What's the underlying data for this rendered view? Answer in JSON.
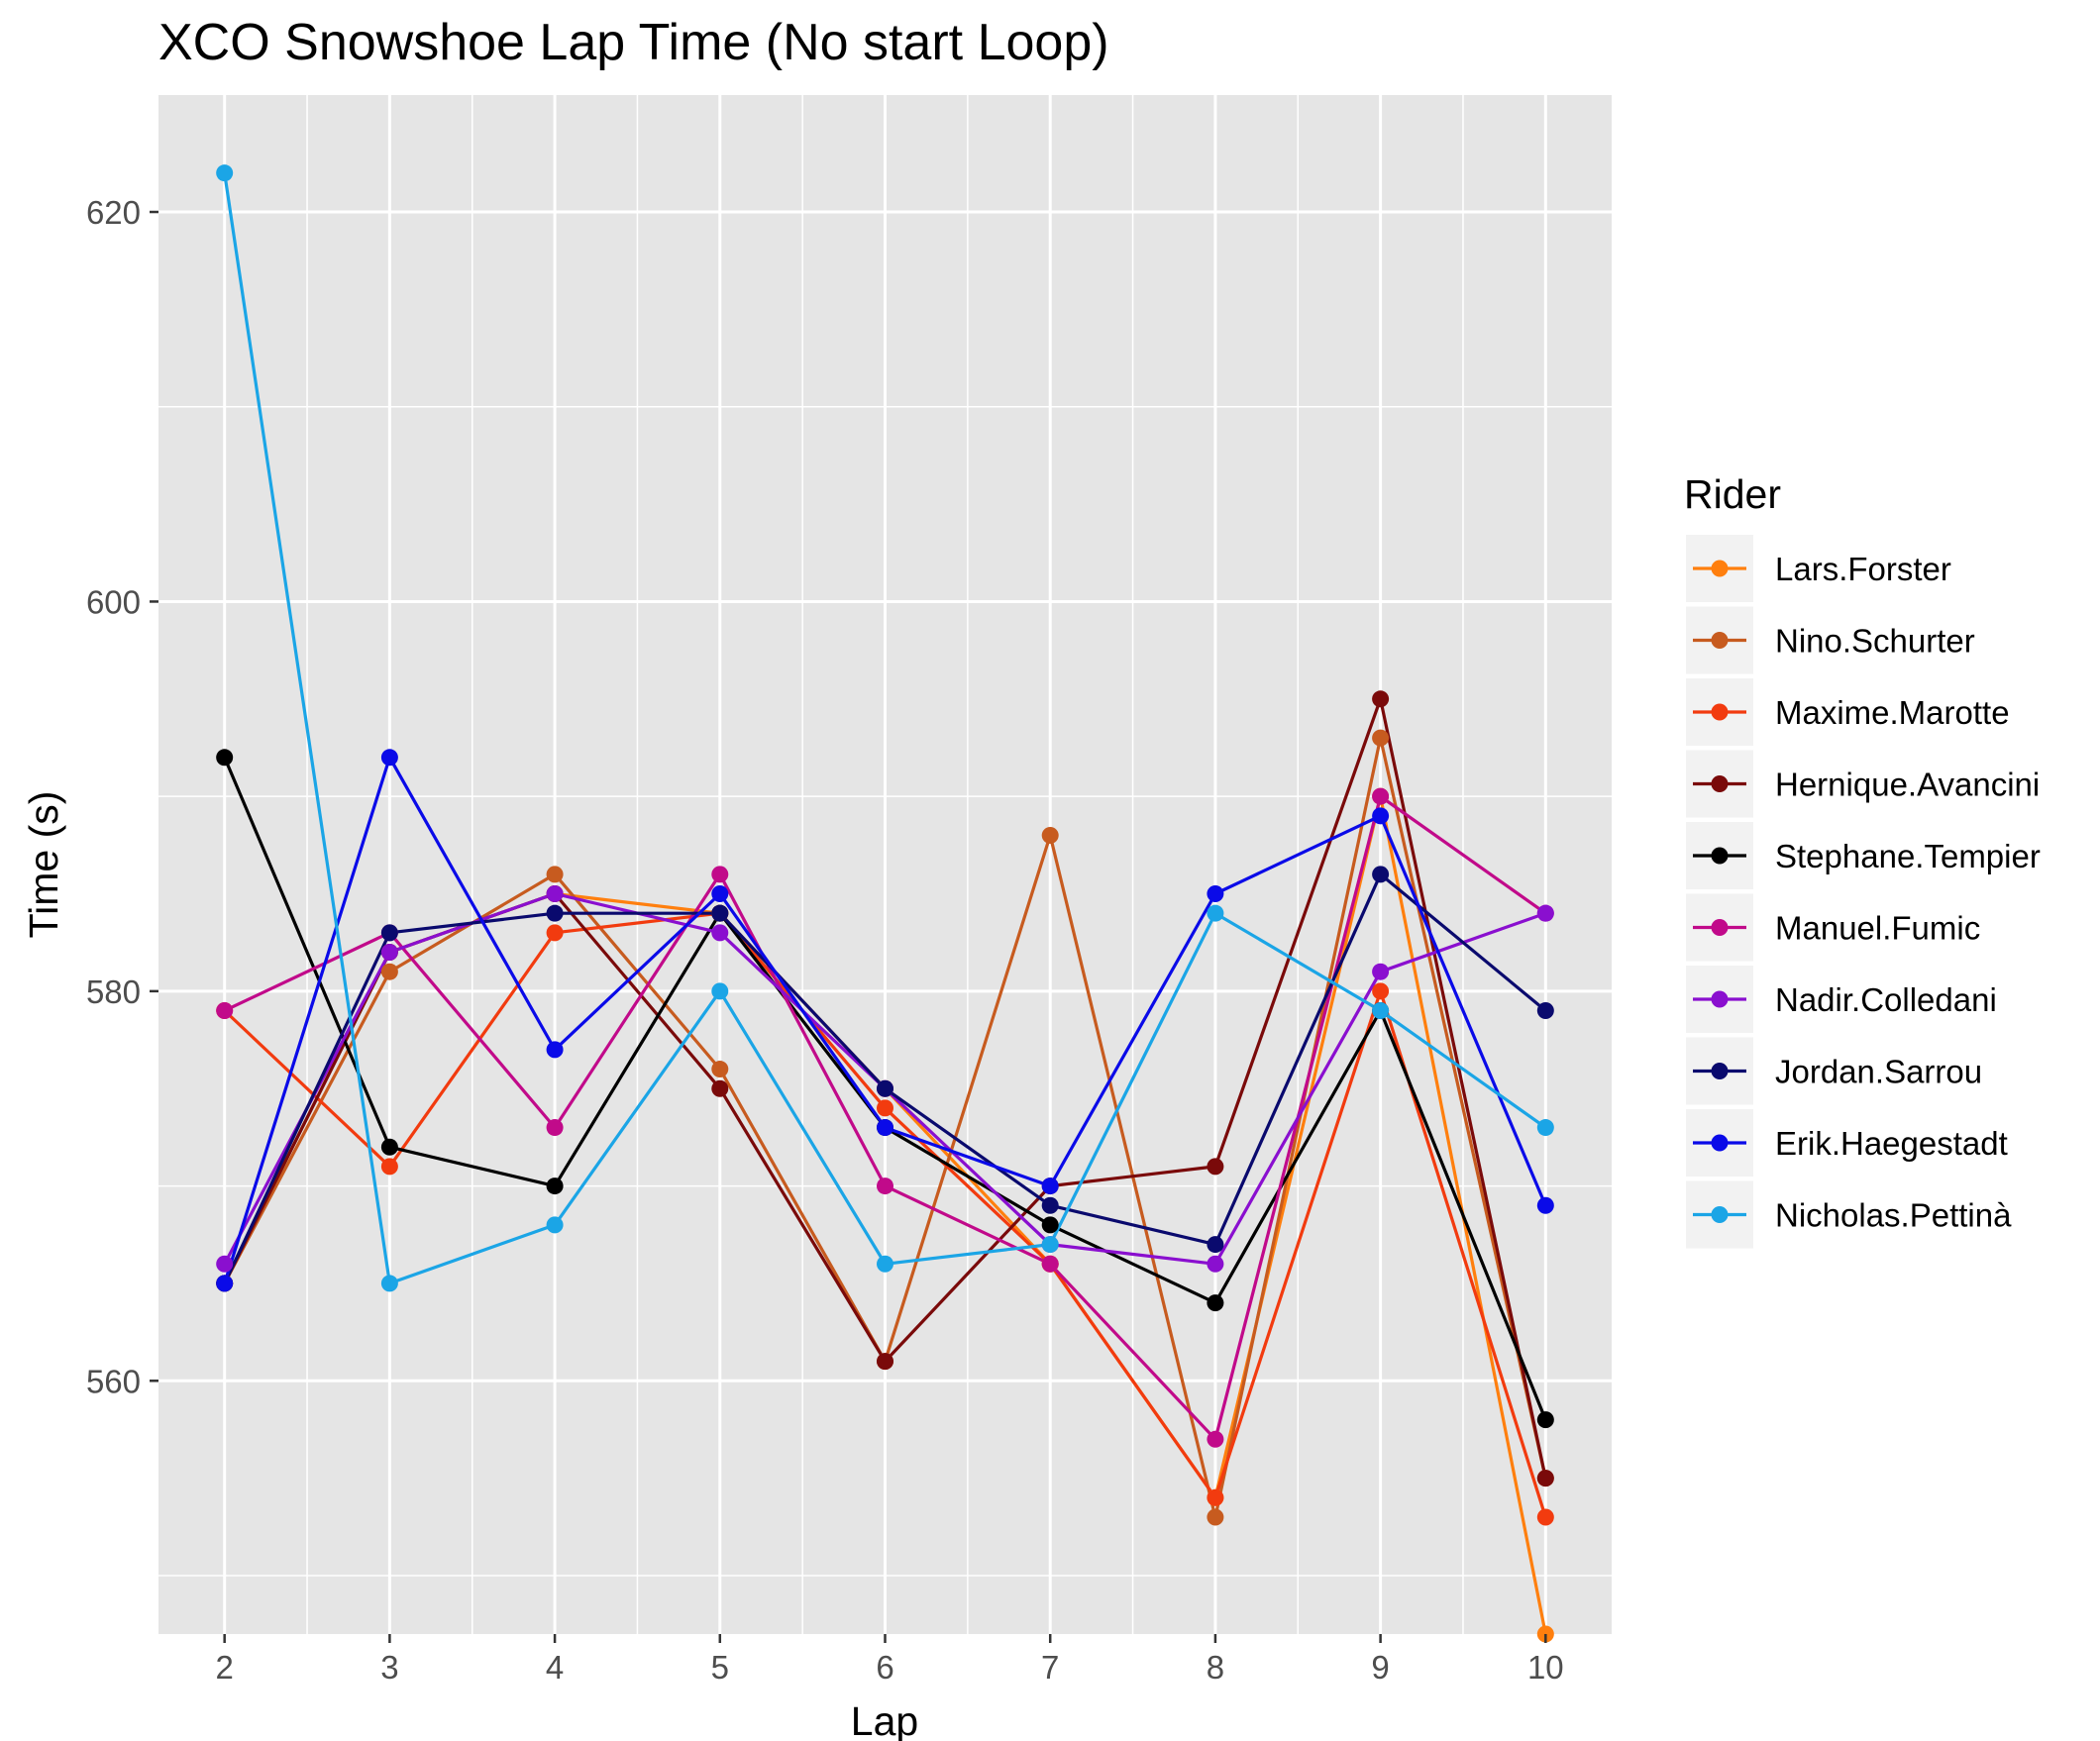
{
  "chart_data": {
    "type": "line",
    "title": "XCO Snowshoe Lap Time (No start Loop)",
    "xlabel": "Lap",
    "ylabel": "Time (s)",
    "x": [
      2,
      3,
      4,
      5,
      6,
      7,
      8,
      9,
      10
    ],
    "xlim": [
      1.6,
      10.4
    ],
    "ylim": [
      547,
      626
    ],
    "yticks": [
      560,
      580,
      600,
      620
    ],
    "grid": true,
    "legend": {
      "title": "Rider",
      "placement": "right"
    },
    "series": [
      {
        "name": "Lars.Forster",
        "color": "#ff7f0e",
        "values": [
          565,
          582,
          585,
          584,
          575,
          566,
          554,
          590,
          547
        ]
      },
      {
        "name": "Nino.Schurter",
        "color": "#c75b1f",
        "values": [
          565,
          581,
          586,
          576,
          561,
          588,
          553,
          593,
          555
        ]
      },
      {
        "name": "Maxime.Marotte",
        "color": "#f23b0f",
        "values": [
          579,
          571,
          583,
          584,
          574,
          566,
          554,
          580,
          553
        ]
      },
      {
        "name": "Hernique.Avancini",
        "color": "#7a0a0a",
        "values": [
          565,
          582,
          585,
          575,
          561,
          570,
          571,
          595,
          555
        ]
      },
      {
        "name": "Stephane.Tempier",
        "color": "#000000",
        "values": [
          592,
          572,
          570,
          584,
          573,
          568,
          564,
          579,
          558
        ]
      },
      {
        "name": "Manuel.Fumic",
        "color": "#c10a8a",
        "values": [
          579,
          583,
          573,
          586,
          570,
          566,
          557,
          590,
          584
        ]
      },
      {
        "name": "Nadir.Colledani",
        "color": "#8a0fcf",
        "values": [
          566,
          582,
          585,
          583,
          575,
          567,
          566,
          581,
          584
        ]
      },
      {
        "name": "Jordan.Sarrou",
        "color": "#0a0a6e",
        "values": [
          565,
          583,
          584,
          584,
          575,
          569,
          567,
          586,
          579
        ]
      },
      {
        "name": "Erik.Haegestadt",
        "color": "#0a0ae8",
        "values": [
          565,
          592,
          577,
          585,
          573,
          570,
          585,
          589,
          569
        ]
      },
      {
        "name": "Nicholas.Pettinà",
        "color": "#1ba5e6",
        "values": [
          622,
          565,
          568,
          580,
          566,
          567,
          584,
          579,
          573
        ]
      }
    ]
  }
}
